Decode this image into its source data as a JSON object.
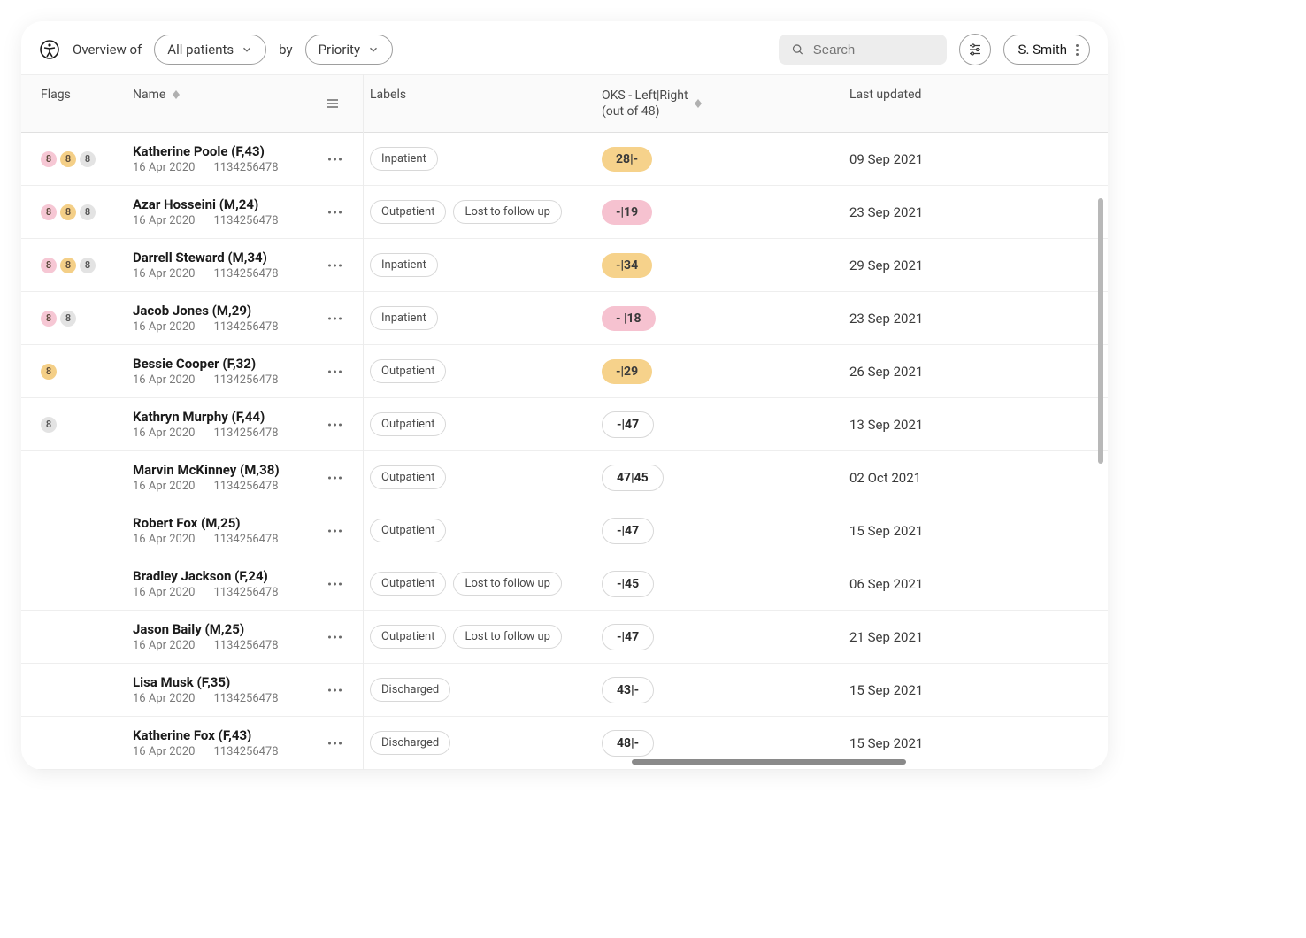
{
  "header": {
    "overview_label": "Overview of",
    "filter1": "All patients",
    "by_label": "by",
    "filter2": "Priority",
    "search_placeholder": "Search",
    "user_name": "S. Smith"
  },
  "columns": {
    "flags": "Flags",
    "name": "Name",
    "labels": "Labels",
    "oks_line1": "OKS - Left|Right",
    "oks_line2": "(out of 48)",
    "updated": "Last updated"
  },
  "flag_colors": {
    "pink": "#f6c7d4",
    "amber": "#f4cf87",
    "grey": "#e3e3e3"
  },
  "oks_colors": {
    "amber": "#f6d28b",
    "pink": "#f6c2d0",
    "white": "#ffffff"
  },
  "rows": [
    {
      "flags": [
        {
          "v": "8",
          "c": "pink"
        },
        {
          "v": "8",
          "c": "amber"
        },
        {
          "v": "8",
          "c": "grey"
        }
      ],
      "name": "Katherine Poole (F,43)",
      "date": "16 Apr 2020",
      "id": "1134256478",
      "labels": [
        "Inpatient"
      ],
      "oks": "28|-",
      "oks_color": "amber",
      "updated": "09 Sep 2021"
    },
    {
      "flags": [
        {
          "v": "8",
          "c": "pink"
        },
        {
          "v": "8",
          "c": "amber"
        },
        {
          "v": "8",
          "c": "grey"
        }
      ],
      "name": "Azar Hosseini (M,24)",
      "date": "16 Apr 2020",
      "id": "1134256478",
      "labels": [
        "Outpatient",
        "Lost to follow up"
      ],
      "oks": "-|19",
      "oks_color": "pink",
      "updated": "23 Sep 2021"
    },
    {
      "flags": [
        {
          "v": "8",
          "c": "pink"
        },
        {
          "v": "8",
          "c": "amber"
        },
        {
          "v": "8",
          "c": "grey"
        }
      ],
      "name": "Darrell Steward (M,34)",
      "date": "16 Apr 2020",
      "id": "1134256478",
      "labels": [
        "Inpatient"
      ],
      "oks": "-|34",
      "oks_color": "amber",
      "updated": "29 Sep 2021"
    },
    {
      "flags": [
        {
          "v": "8",
          "c": "pink"
        },
        {
          "v": "8",
          "c": "grey"
        }
      ],
      "name": "Jacob Jones (M,29)",
      "date": "16 Apr 2020",
      "id": "1134256478",
      "labels": [
        "Inpatient"
      ],
      "oks": "- |18",
      "oks_color": "pink",
      "updated": "23 Sep 2021"
    },
    {
      "flags": [
        {
          "v": "8",
          "c": "amber"
        }
      ],
      "name": "Bessie Cooper (F,32)",
      "date": "16 Apr 2020",
      "id": "1134256478",
      "labels": [
        "Outpatient"
      ],
      "oks": "-|29",
      "oks_color": "amber",
      "updated": "26 Sep 2021"
    },
    {
      "flags": [
        {
          "v": "8",
          "c": "grey"
        }
      ],
      "name": "Kathryn Murphy (F,44)",
      "date": "16 Apr 2020",
      "id": "1134256478",
      "labels": [
        "Outpatient"
      ],
      "oks": "-|47",
      "oks_color": "white",
      "updated": "13 Sep 2021"
    },
    {
      "flags": [],
      "name": "Marvin McKinney (M,38)",
      "date": "16 Apr 2020",
      "id": "1134256478",
      "labels": [
        "Outpatient"
      ],
      "oks": "47|45",
      "oks_color": "white",
      "updated": "02 Oct 2021"
    },
    {
      "flags": [],
      "name": "Robert Fox (M,25)",
      "date": "16 Apr 2020",
      "id": "1134256478",
      "labels": [
        "Outpatient"
      ],
      "oks": "-|47",
      "oks_color": "white",
      "updated": "15 Sep 2021"
    },
    {
      "flags": [],
      "name": "Bradley Jackson (F,24)",
      "date": "16 Apr 2020",
      "id": "1134256478",
      "labels": [
        "Outpatient",
        "Lost to follow up"
      ],
      "oks": "-|45",
      "oks_color": "white",
      "updated": "06 Sep 2021"
    },
    {
      "flags": [],
      "name": "Jason Baily (M,25)",
      "date": "16 Apr 2020",
      "id": "1134256478",
      "labels": [
        "Outpatient",
        "Lost to follow up"
      ],
      "oks": "-|47",
      "oks_color": "white",
      "updated": "21 Sep 2021"
    },
    {
      "flags": [],
      "name": "Lisa Musk (F,35)",
      "date": "16 Apr 2020",
      "id": "1134256478",
      "labels": [
        "Discharged"
      ],
      "oks": "43|-",
      "oks_color": "white",
      "updated": "15 Sep 2021"
    },
    {
      "flags": [],
      "name": "Katherine Fox (F,43)",
      "date": "16 Apr 2020",
      "id": "1134256478",
      "labels": [
        "Discharged"
      ],
      "oks": "48|-",
      "oks_color": "white",
      "updated": "15 Sep 2021"
    }
  ]
}
